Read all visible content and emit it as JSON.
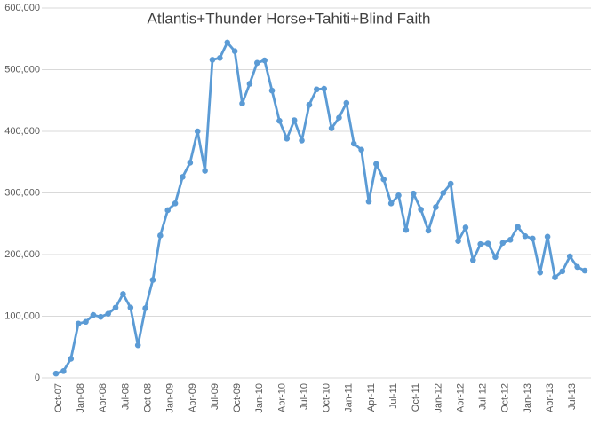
{
  "chart_data": {
    "type": "line",
    "title": "Atlantis+Thunder Horse+Tahiti+Blind Faith",
    "categories": [
      "Oct-07",
      null,
      null,
      "Jan-08",
      null,
      null,
      "Apr-08",
      null,
      null,
      "Jul-08",
      null,
      null,
      "Oct-08",
      null,
      null,
      "Jan-09",
      null,
      null,
      "Apr-09",
      null,
      null,
      "Jul-09",
      null,
      null,
      "Oct-09",
      null,
      null,
      "Jan-10",
      null,
      null,
      "Apr-10",
      null,
      null,
      "Jul-10",
      null,
      null,
      "Oct-10",
      null,
      null,
      "Jan-11",
      null,
      null,
      "Apr-11",
      null,
      null,
      "Jul-11",
      null,
      null,
      "Oct-11",
      null,
      null,
      "Jan-12",
      null,
      null,
      "Apr-12",
      null,
      null,
      "Jul-12",
      null,
      null,
      "Oct-12",
      null,
      null,
      "Jan-13",
      null,
      null,
      "Apr-13",
      null,
      null,
      "Jul-13",
      null,
      null
    ],
    "series": [
      {
        "color": "#5b9bd5",
        "values": [
          7000,
          11000,
          31000,
          88000,
          91000,
          102000,
          99000,
          104000,
          114000,
          136000,
          114000,
          53000,
          113000,
          159000,
          231000,
          272000,
          283000,
          326000,
          349000,
          400000,
          336000,
          516000,
          519000,
          544000,
          530000,
          445000,
          477000,
          511000,
          515000,
          466000,
          417000,
          388000,
          418000,
          385000,
          443000,
          468000,
          469000,
          405000,
          422000,
          446000,
          380000,
          370000,
          286000,
          347000,
          322000,
          283000,
          296000,
          240000,
          299000,
          273000,
          239000,
          277000,
          300000,
          315000,
          222000,
          244000,
          191000,
          217000,
          218000,
          196000,
          219000,
          224000,
          245000,
          230000,
          226000,
          171000,
          229000,
          163000,
          173000,
          197000,
          180000,
          174000
        ]
      }
    ],
    "ylim": [
      0,
      600000
    ],
    "yticks": [
      0,
      {
        "value": 100000,
        "label": "100,000"
      },
      {
        "value": 200000,
        "label": "200,000"
      },
      {
        "value": 300000,
        "label": "300,000"
      },
      {
        "value": 400000,
        "label": "400,000"
      },
      {
        "value": 500000,
        "label": "500,000"
      },
      {
        "value": 600000,
        "label": "600,000"
      }
    ],
    "grid": true
  }
}
